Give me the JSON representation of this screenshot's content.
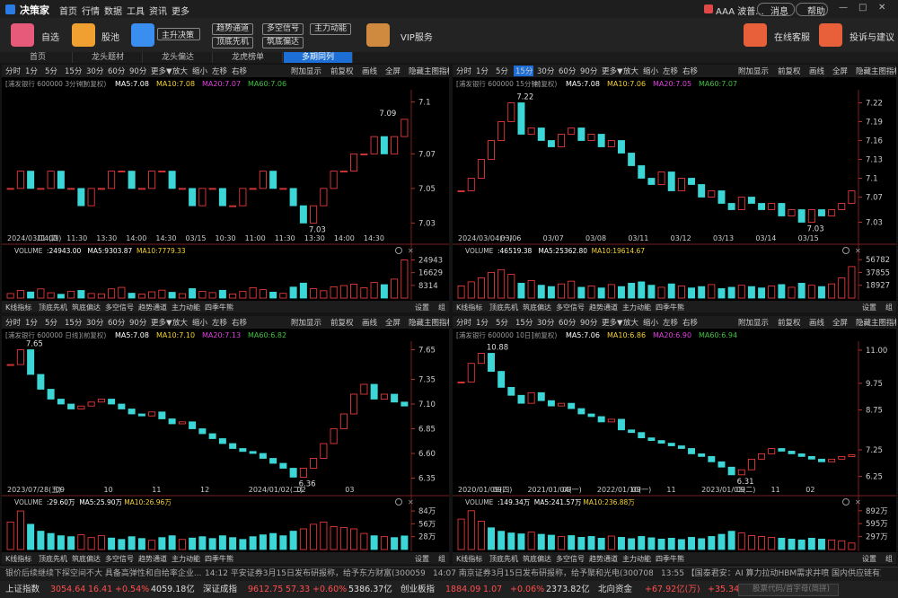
{
  "menu": {
    "logo": "决策家",
    "items": [
      "首页",
      "行情",
      "数据",
      "工具",
      "资讯",
      "更多"
    ],
    "user": "AAA 波普...",
    "message": "消息",
    "help": "帮助"
  },
  "toolbar": {
    "buttons": [
      "自选",
      "股池"
    ],
    "main": "主升决策",
    "tags": [
      "趋势通道",
      "多空信号",
      "主力动能",
      "顶底先机",
      "筑底偏达"
    ],
    "vip": "VIP服务",
    "service": "在线客服",
    "feedback": "投诉与建议"
  },
  "tabs": {
    "items": [
      "首页",
      "龙头题材",
      "龙头偏达",
      "龙虎榜单",
      "多期同列"
    ],
    "active": 4
  },
  "panel_toolbar": {
    "periods": [
      "分时",
      "1分",
      "5分",
      "15分",
      "30分",
      "60分",
      "90分",
      "更多▼",
      "放大",
      "缩小",
      "左移",
      "右移"
    ],
    "tools": [
      "附加显示",
      "前复权",
      "画线",
      "全屏",
      "隐藏主图指标"
    ],
    "indicators": [
      "K线指标",
      "顶底先机",
      "筑底偏达",
      "多空信号",
      "趋势通道",
      "主力动能",
      "四季牛熊"
    ],
    "settings": "设置",
    "group": "组",
    "volume": "VOLUME"
  },
  "panels": [
    {
      "active_period": null,
      "stock": "[浦发银行 600000 3分钟]",
      "adjust": "(前复权)",
      "ma": [
        {
          "label": "MA5:7.08",
          "color": "#ffffff"
        },
        {
          "label": "MA10:7.08",
          "color": "#f5d130"
        },
        {
          "label": "MA20:7.07",
          "color": "#e040e0"
        },
        {
          "label": "MA60:7.06",
          "color": "#40c040"
        }
      ],
      "ylim": [
        7.025,
        7.105
      ],
      "yticks": [
        7.1,
        7.07,
        7.05,
        7.03
      ],
      "high": 7.09,
      "low": 7.03,
      "closes": [
        7.05,
        7.06,
        7.05,
        7.05,
        7.06,
        7.05,
        7.05,
        7.04,
        7.05,
        7.05,
        7.06,
        7.06,
        7.05,
        7.05,
        7.06,
        7.06,
        7.05,
        7.05,
        7.04,
        7.05,
        7.05,
        7.04,
        7.04,
        7.05,
        7.05,
        7.06,
        7.05,
        7.05,
        7.04,
        7.03,
        7.04,
        7.05,
        7.06,
        7.06,
        7.07,
        7.07,
        7.08,
        7.07,
        7.08,
        7.09
      ],
      "dates": [
        "2024/03/14(四)",
        "11:00",
        "11:30",
        "13:30",
        "14:00",
        "14:30",
        "03/15",
        "10:30",
        "11:00",
        "11:30",
        "13:30",
        "14:00",
        "14:30"
      ],
      "volume_info": [
        {
          "label": ":24943.00",
          "color": "#ffffff"
        },
        {
          "label": "MA5:9303.87",
          "color": "#ffffff"
        },
        {
          "label": "MA10:7779.33",
          "color": "#f5d130"
        }
      ],
      "vlim": [
        0,
        27000
      ],
      "vticks": [
        24943,
        16629,
        8314
      ],
      "volumes": [
        3000,
        5000,
        4000,
        6000,
        3500,
        2500,
        4500,
        5000,
        3000,
        2800,
        6000,
        7000,
        3200,
        2600,
        4100,
        5200,
        3800,
        2900,
        6200,
        4400,
        3600,
        5100,
        2700,
        4300,
        6800,
        5500,
        3900,
        3100,
        7200,
        9800,
        6100,
        4800,
        7400,
        8200,
        9100,
        6700,
        10200,
        8800,
        12400,
        24943
      ]
    },
    {
      "active_period": 3,
      "stock": "[浦发银行 600000 15分钟]",
      "adjust": "(前复权)",
      "ma": [
        {
          "label": "MA5:7.08",
          "color": "#ffffff"
        },
        {
          "label": "MA10:7.06",
          "color": "#f5d130"
        },
        {
          "label": "MA20:7.05",
          "color": "#e040e0"
        },
        {
          "label": "MA60:7.07",
          "color": "#40c040"
        }
      ],
      "ylim": [
        7.015,
        7.235
      ],
      "yticks": [
        7.22,
        7.19,
        7.16,
        7.13,
        7.1,
        7.07,
        7.03
      ],
      "high": 7.22,
      "low": 7.03,
      "closes": [
        7.08,
        7.1,
        7.13,
        7.16,
        7.19,
        7.22,
        7.17,
        7.18,
        7.16,
        7.15,
        7.17,
        7.18,
        7.16,
        7.17,
        7.15,
        7.16,
        7.14,
        7.12,
        7.1,
        7.09,
        7.11,
        7.08,
        7.1,
        7.09,
        7.07,
        7.08,
        7.06,
        7.05,
        7.07,
        7.06,
        7.05,
        7.06,
        7.04,
        7.05,
        7.03,
        7.05,
        7.04,
        7.05,
        7.06,
        7.08
      ],
      "dates": [
        "2024/03/04(一)",
        "03/06",
        "03/07",
        "03/08",
        "03/11",
        "03/12",
        "03/13",
        "03/14",
        "03/15"
      ],
      "volume_info": [
        {
          "label": ":46519.38",
          "color": "#ffffff"
        },
        {
          "label": "MA5:25362.80",
          "color": "#ffffff"
        },
        {
          "label": "MA10:19614.67",
          "color": "#f5d130"
        }
      ],
      "vlim": [
        0,
        61000
      ],
      "vticks": [
        56782,
        37855,
        18927
      ],
      "volumes": [
        18000,
        24000,
        30000,
        38000,
        42000,
        35000,
        22000,
        26000,
        19000,
        17000,
        21000,
        25000,
        16000,
        18000,
        15000,
        20000,
        17000,
        22000,
        24000,
        19000,
        16000,
        21000,
        18000,
        15000,
        17000,
        20000,
        14000,
        16000,
        19000,
        17000,
        15000,
        18000,
        20000,
        16000,
        22000,
        19000,
        17000,
        21000,
        30000,
        46519.38
      ]
    },
    {
      "active_period": null,
      "stock": "[浦发银行 600000 日线]",
      "adjust": "(前复权)",
      "ma": [
        {
          "label": "MA5:7.08",
          "color": "#ffffff"
        },
        {
          "label": "MA10:7.10",
          "color": "#f5d130"
        },
        {
          "label": "MA20:7.13",
          "color": "#e040e0"
        },
        {
          "label": "MA60:6.82",
          "color": "#40c040"
        }
      ],
      "ylim": [
        6.3,
        7.7
      ],
      "yticks": [
        7.65,
        7.35,
        {
          "value": 7.1,
          "label": "7.10"
        },
        6.85,
        {
          "value": 6.6,
          "label": "6.60"
        },
        6.35
      ],
      "high": 7.65,
      "low": 6.36,
      "closes": [
        7.5,
        7.65,
        7.4,
        7.25,
        7.15,
        7.1,
        7.05,
        7.08,
        7.12,
        7.15,
        7.1,
        7.05,
        7.0,
        6.98,
        7.02,
        6.95,
        6.9,
        6.92,
        6.85,
        6.8,
        6.75,
        6.7,
        6.65,
        6.62,
        6.6,
        6.55,
        6.5,
        6.45,
        6.36,
        6.45,
        6.55,
        6.7,
        6.85,
        7.0,
        7.2,
        7.3,
        7.15,
        7.2,
        7.12,
        7.08
      ],
      "dates": [
        "2023/07/28(五)",
        "09",
        "10",
        "11",
        "12",
        "2024/01/02(二)",
        "02",
        "03"
      ],
      "volume_info": [
        {
          "label": ":29.60万",
          "color": "#ffffff"
        },
        {
          "label": "MA5:25.90万",
          "color": "#ffffff"
        },
        {
          "label": "MA10:26.96万",
          "color": "#f5d130"
        }
      ],
      "vlim": [
        0,
        90
      ],
      "vticks": [
        {
          "value": 84,
          "label": "84万"
        },
        {
          "value": 56,
          "label": "56万"
        },
        {
          "value": 28,
          "label": "28万"
        }
      ],
      "volumes": [
        60,
        84,
        55,
        40,
        35,
        30,
        28,
        32,
        26,
        30,
        25,
        22,
        28,
        24,
        20,
        26,
        30,
        22,
        25,
        28,
        24,
        30,
        26,
        22,
        28,
        32,
        35,
        30,
        40,
        45,
        55,
        60,
        50,
        48,
        45,
        35,
        30,
        28,
        26,
        29.6
      ]
    },
    {
      "active_period": null,
      "stock": "[浦发银行 600000 10日]",
      "adjust": "(前复权)",
      "ma": [
        {
          "label": "MA5:7.06",
          "color": "#ffffff"
        },
        {
          "label": "MA10:6.86",
          "color": "#f5d130"
        },
        {
          "label": "MA20:6.90",
          "color": "#e040e0"
        },
        {
          "label": "MA60:6.94",
          "color": "#40c040"
        }
      ],
      "ylim": [
        6.0,
        11.2
      ],
      "yticks": [
        {
          "value": 11,
          "label": "11.00"
        },
        9.75,
        8.75,
        7.25,
        6.25
      ],
      "high": 10.88,
      "low": 6.31,
      "closes": [
        9.8,
        10.5,
        10.88,
        10.2,
        9.6,
        9.3,
        9.0,
        9.4,
        9.1,
        8.9,
        9.0,
        8.8,
        8.6,
        8.5,
        8.3,
        8.4,
        8.0,
        7.9,
        7.7,
        7.6,
        7.5,
        7.4,
        7.3,
        7.1,
        7.0,
        6.8,
        6.6,
        6.31,
        6.5,
        6.9,
        7.1,
        7.3,
        7.2,
        7.1,
        7.0,
        6.9,
        6.8,
        6.9,
        7.0,
        7.06
      ],
      "dates": [
        "2020/01/09(四)",
        "09",
        "2021/01/04(一)",
        "09",
        "2022/01/10(一)",
        "09",
        "11",
        "2023/01/03(二)",
        "09",
        "11",
        "02"
      ],
      "volume_info": [
        {
          "label": ":149.34万",
          "color": "#ffffff"
        },
        {
          "label": "MA5:241.57万",
          "color": "#ffffff"
        },
        {
          "label": "MA10:236.88万",
          "color": "#f5d130"
        }
      ],
      "vlim": [
        0,
        950
      ],
      "vticks": [
        {
          "value": 892,
          "label": "892万"
        },
        {
          "value": 595,
          "label": "595万"
        },
        {
          "value": 297,
          "label": "297万"
        }
      ],
      "volumes": [
        700,
        892,
        650,
        500,
        420,
        380,
        360,
        400,
        350,
        330,
        300,
        320,
        280,
        300,
        260,
        310,
        280,
        250,
        300,
        270,
        240,
        260,
        230,
        280,
        250,
        300,
        350,
        420,
        380,
        320,
        300,
        280,
        260,
        240,
        220,
        260,
        240,
        220,
        200,
        149.34
      ]
    }
  ],
  "ticker": [
    "银价后续继续下探空间不大 具备高弹性和自给率企业...",
    "14:12 平安证券3月15日发布研报称，给予东方财富(300059.S...",
    "14:07 南京证券3月15日发布研报称，给予聚和光电(300708.S...",
    "13:55 【国泰君安：AI 算力拉动HBM需求井喷 国内供应链有望受益..."
  ],
  "status": {
    "indices": [
      {
        "name": "上证指数",
        "price": "3054.64",
        "change": "16.41",
        "pct": "+0.54%",
        "amount": "4059.18亿"
      },
      {
        "name": "深证成指",
        "price": "9612.75",
        "change": "57.33",
        "pct": "+0.60%",
        "amount": "5386.37亿"
      },
      {
        "name": "创业板指",
        "price": "1884.09",
        "change": "1.07",
        "pct": "+0.06%",
        "amount": "2373.82亿"
      }
    ],
    "north": "北向资金",
    "north_values": [
      "+67.92亿(万)",
      "+35.34亿(万)"
    ],
    "search": "股票代码/首字母(简拼)"
  }
}
